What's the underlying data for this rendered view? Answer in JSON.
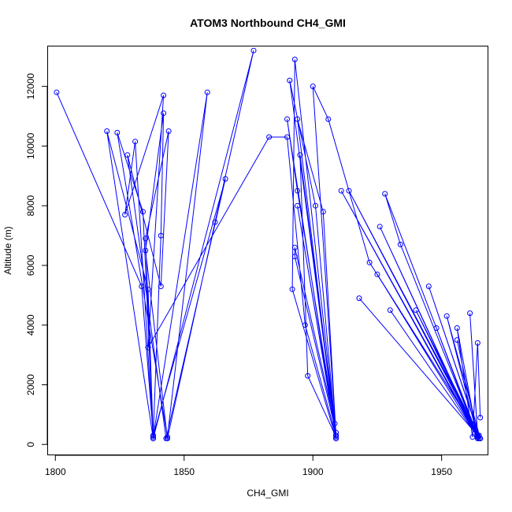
{
  "chart_data": {
    "type": "line",
    "title": "ATOM3 Northbound CH4_GMI",
    "xlabel": "CH4_GMI",
    "ylabel": "Altitude (m)",
    "xlim": [
      1797,
      1968
    ],
    "ylim": [
      -350,
      13350
    ],
    "xticks": [
      1800,
      1850,
      1900,
      1950
    ],
    "yticks": [
      0,
      2000,
      4000,
      6000,
      8000,
      10000,
      12000
    ],
    "grid": false,
    "series": [
      {
        "color": "#0000ff",
        "points": [
          [
            1800.5,
            11800
          ],
          [
            1833.5,
            5300
          ],
          [
            1838,
            300
          ],
          [
            1841,
            7000
          ],
          [
            1842,
            11100
          ],
          [
            1835,
            6500
          ],
          [
            1843.5,
            200
          ],
          [
            1862,
            7450
          ],
          [
            1877,
            13200
          ],
          [
            1838,
            200
          ],
          [
            1820,
            10500
          ],
          [
            1836,
            5200
          ],
          [
            1838,
            250
          ],
          [
            1859,
            11800
          ],
          [
            1843.5,
            250
          ],
          [
            1824,
            10450
          ],
          [
            1834,
            7800
          ],
          [
            1838,
            300
          ],
          [
            1866,
            8900
          ],
          [
            1843,
            200
          ],
          [
            1828,
            9700
          ],
          [
            1841,
            5300
          ],
          [
            1844,
            10500
          ],
          [
            1835,
            6900
          ],
          [
            1838,
            200
          ],
          [
            1831,
            10150
          ],
          [
            1827,
            7700
          ],
          [
            1842,
            11700
          ],
          [
            1836,
            3250
          ],
          [
            1883,
            10300
          ],
          [
            1890,
            10300
          ],
          [
            1897,
            4000
          ],
          [
            1909,
            300
          ],
          [
            1893,
            12900
          ],
          [
            1892,
            5200
          ],
          [
            1909,
            200
          ],
          [
            1890,
            10900
          ],
          [
            1894,
            8500
          ],
          [
            1908.5,
            700
          ],
          [
            1893,
            6600
          ],
          [
            1893,
            6300
          ],
          [
            1909,
            400
          ],
          [
            1895,
            9700
          ],
          [
            1898,
            2300
          ],
          [
            1909,
            250
          ],
          [
            1894,
            8000
          ],
          [
            1909,
            300
          ],
          [
            1891,
            12200
          ],
          [
            1901,
            8000
          ],
          [
            1909,
            200
          ],
          [
            1894,
            10900
          ],
          [
            1904,
            7800
          ],
          [
            1909,
            300
          ],
          [
            1900,
            12000
          ],
          [
            1906,
            10900
          ],
          [
            1922,
            6100
          ],
          [
            1964.5,
            300
          ],
          [
            1925,
            5700
          ],
          [
            1964,
            250
          ],
          [
            1930,
            4500
          ],
          [
            1964,
            250
          ],
          [
            1926,
            7300
          ],
          [
            1963.5,
            300
          ],
          [
            1911,
            8500
          ],
          [
            1964.5,
            200
          ],
          [
            1914,
            8500
          ],
          [
            1965,
            200
          ],
          [
            1918,
            4900
          ],
          [
            1964,
            300
          ],
          [
            1928,
            8400
          ],
          [
            1934,
            6700
          ],
          [
            1964,
            250
          ],
          [
            1940,
            4500
          ],
          [
            1964.5,
            300
          ],
          [
            1945,
            5300
          ],
          [
            1965,
            200
          ],
          [
            1952,
            4300
          ],
          [
            1964,
            250
          ],
          [
            1956,
            3500
          ],
          [
            1964,
            250
          ],
          [
            1961,
            4400
          ],
          [
            1964,
            300
          ],
          [
            1948,
            3900
          ],
          [
            1964,
            200
          ],
          [
            1956,
            3900
          ],
          [
            1962,
            250
          ],
          [
            1964,
            3400
          ],
          [
            1965,
            900
          ]
        ]
      }
    ]
  }
}
